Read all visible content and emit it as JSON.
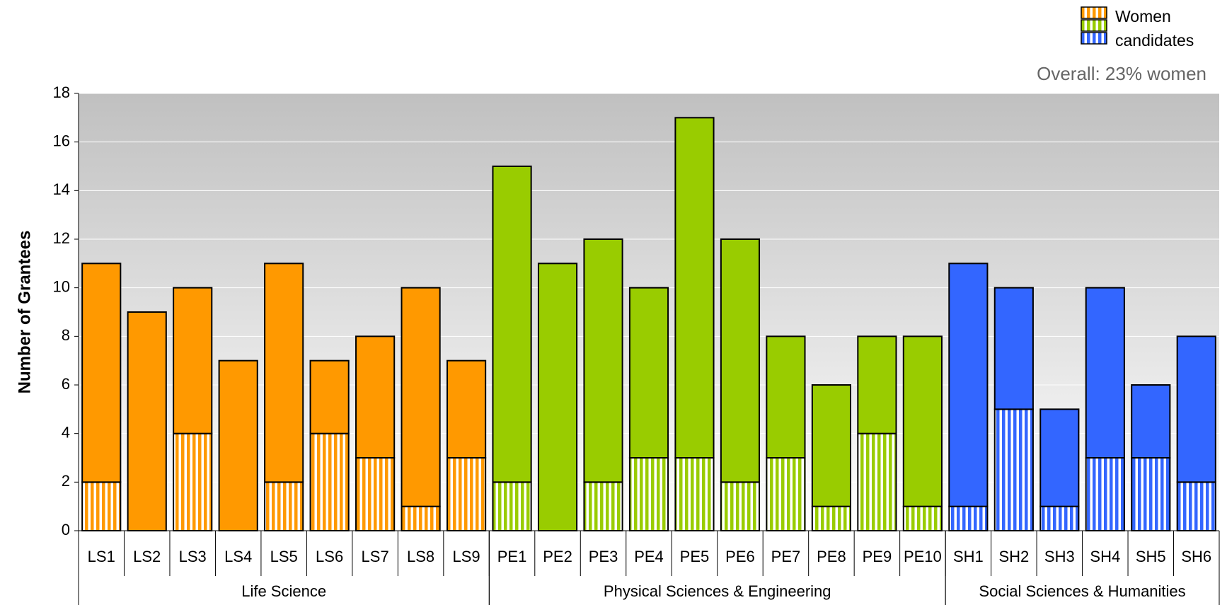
{
  "chart_data": {
    "type": "bar",
    "stacked": true,
    "ylabel": "Number of Grantees",
    "annotation": "Overall: 23% women",
    "ylim": [
      0,
      18
    ],
    "yticks": [
      0,
      2,
      4,
      6,
      8,
      10,
      12,
      14,
      16,
      18
    ],
    "grid": true,
    "legend": "top-right",
    "groups": [
      {
        "label": "Life Science",
        "color": "#ff9900",
        "categories": [
          "LS1",
          "LS2",
          "LS3",
          "LS4",
          "LS5",
          "LS6",
          "LS7",
          "LS8",
          "LS9"
        ]
      },
      {
        "label": "Physical Sciences & Engineering",
        "color": "#99cc00",
        "categories": [
          "PE1",
          "PE2",
          "PE3",
          "PE4",
          "PE5",
          "PE6",
          "PE7",
          "PE8",
          "PE9",
          "PE10"
        ]
      },
      {
        "label": "Social Sciences & Humanities",
        "color": "#3366ff",
        "categories": [
          "SH1",
          "SH2",
          "SH3",
          "SH4",
          "SH5",
          "SH6"
        ]
      }
    ],
    "series": [
      {
        "name": "Women candidates",
        "pattern": "striped",
        "values": [
          2,
          0,
          4,
          0,
          2,
          4,
          3,
          1,
          3,
          2,
          0,
          2,
          3,
          3,
          2,
          3,
          1,
          4,
          1,
          1,
          5,
          1,
          3,
          3,
          2
        ]
      },
      {
        "pattern": "solid",
        "values": [
          9,
          9,
          6,
          7,
          9,
          3,
          5,
          9,
          4,
          13,
          11,
          10,
          7,
          14,
          10,
          5,
          5,
          4,
          7,
          10,
          5,
          4,
          7,
          3,
          6
        ]
      }
    ]
  }
}
